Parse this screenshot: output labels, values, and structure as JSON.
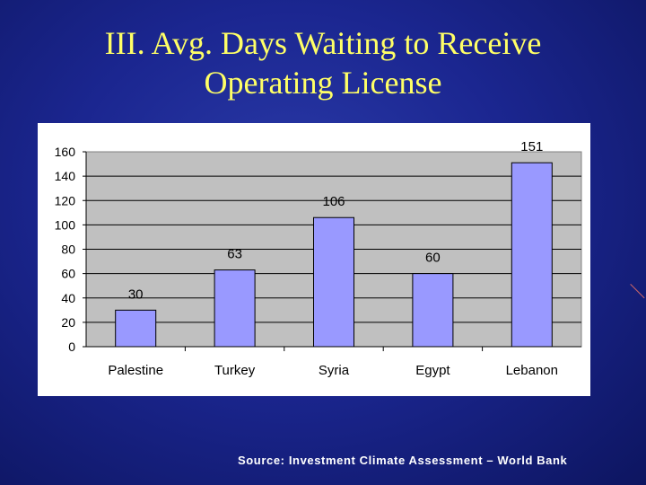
{
  "slide": {
    "title_line1": "III. Avg. Days Waiting to Receive",
    "title_line2": "Operating License",
    "source": "Source: Investment Climate Assessment – World Bank",
    "colors": {
      "background": "#1b2690",
      "title": "#ffff66",
      "plot_area": "#c0c0c0",
      "bar_fill": "#9999ff"
    }
  },
  "chart_data": {
    "type": "bar",
    "categories": [
      "Palestine",
      "Turkey",
      "Syria",
      "Egypt",
      "Lebanon"
    ],
    "values": [
      30,
      63,
      106,
      60,
      151
    ],
    "ylim": [
      0,
      160
    ],
    "yticks": [
      0,
      20,
      40,
      60,
      80,
      100,
      120,
      140,
      160
    ],
    "grid": true,
    "legend": "none",
    "data_labels": true
  }
}
